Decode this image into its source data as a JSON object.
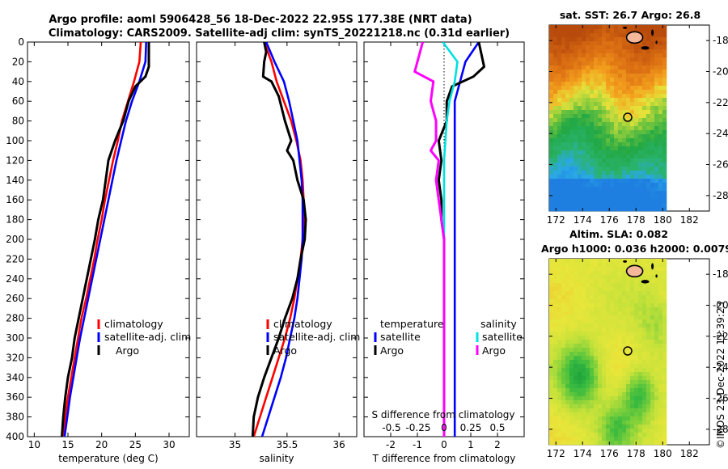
{
  "figure": {
    "title_line1": "Argo profile: aoml 5906428_56 18-Dec-2022 22.95S 177.38E (NRT data)",
    "title_line2": "Climatology: CARS2009. Satellite-adj clim: synTS_20221218.nc (0.31d earlier)",
    "timestamp": "©IMOS 23-Dec-2022 11:39:23"
  },
  "colors": {
    "climatology": "#ff0000",
    "satellite": "#0000ff",
    "argo": "#000000",
    "sat_salinity": "#00e0e0",
    "argo_salinity": "#ff00ff"
  },
  "chart_data": [
    {
      "type": "line",
      "panel": "temperature",
      "xlabel": "temperature (deg C)",
      "ylabel": "",
      "xlim": [
        9,
        33
      ],
      "ylim": [
        0,
        400
      ],
      "y_reversed": true,
      "xticks": [
        10,
        15,
        20,
        25,
        30
      ],
      "yticks": [
        0,
        20,
        40,
        60,
        80,
        100,
        120,
        140,
        160,
        180,
        200,
        220,
        240,
        260,
        280,
        300,
        320,
        340,
        360,
        380,
        400
      ],
      "legend": [
        "climatology",
        "satellite-adj. clim",
        "Argo"
      ],
      "legend_position": "bottom-right",
      "series": [
        {
          "name": "climatology",
          "color": "#ff0000",
          "points": [
            [
              25.8,
              0
            ],
            [
              25.6,
              20
            ],
            [
              24.8,
              40
            ],
            [
              23.9,
              60
            ],
            [
              23.0,
              80
            ],
            [
              22.4,
              100
            ],
            [
              21.7,
              120
            ],
            [
              21.1,
              140
            ],
            [
              20.5,
              160
            ],
            [
              20.0,
              180
            ],
            [
              19.4,
              200
            ],
            [
              18.9,
              220
            ],
            [
              18.3,
              240
            ],
            [
              17.7,
              260
            ],
            [
              17.0,
              280
            ],
            [
              16.5,
              300
            ],
            [
              16.0,
              320
            ],
            [
              15.5,
              340
            ],
            [
              15.0,
              360
            ],
            [
              14.6,
              380
            ],
            [
              14.2,
              400
            ]
          ]
        },
        {
          "name": "satellite-adj. clim",
          "color": "#0000ff",
          "points": [
            [
              26.6,
              0
            ],
            [
              26.5,
              20
            ],
            [
              25.6,
              40
            ],
            [
              24.5,
              60
            ],
            [
              23.6,
              80
            ],
            [
              22.9,
              100
            ],
            [
              22.2,
              120
            ],
            [
              21.6,
              140
            ],
            [
              21.0,
              160
            ],
            [
              20.4,
              180
            ],
            [
              19.8,
              200
            ],
            [
              19.2,
              220
            ],
            [
              18.6,
              240
            ],
            [
              18.0,
              260
            ],
            [
              17.4,
              280
            ],
            [
              16.8,
              300
            ],
            [
              16.3,
              320
            ],
            [
              15.8,
              340
            ],
            [
              15.3,
              360
            ],
            [
              14.9,
              380
            ],
            [
              14.5,
              400
            ]
          ]
        },
        {
          "name": "Argo",
          "color": "#000000",
          "points": [
            [
              27.0,
              0
            ],
            [
              27.0,
              25
            ],
            [
              26.5,
              35
            ],
            [
              25.0,
              45
            ],
            [
              24.0,
              60
            ],
            [
              23.2,
              80
            ],
            [
              22.0,
              100
            ],
            [
              21.0,
              120
            ],
            [
              20.6,
              140
            ],
            [
              20.2,
              160
            ],
            [
              19.5,
              180
            ],
            [
              19.0,
              200
            ],
            [
              18.4,
              220
            ],
            [
              17.8,
              240
            ],
            [
              17.2,
              260
            ],
            [
              16.6,
              280
            ],
            [
              16.0,
              300
            ],
            [
              15.6,
              320
            ],
            [
              15.0,
              340
            ],
            [
              14.6,
              360
            ],
            [
              14.3,
              380
            ],
            [
              14.1,
              400
            ]
          ]
        }
      ]
    },
    {
      "type": "line",
      "panel": "salinity",
      "xlabel": "salinity",
      "ylabel": "",
      "xlim": [
        34.63,
        36.17
      ],
      "ylim": [
        0,
        400
      ],
      "y_reversed": true,
      "xticks": [
        35,
        35.5,
        36
      ],
      "legend": [
        "climatology",
        "satellite-adj. clim",
        "Argo"
      ],
      "legend_position": "bottom-right",
      "series": [
        {
          "name": "climatology",
          "color": "#ff0000",
          "points": [
            [
              35.28,
              0
            ],
            [
              35.35,
              20
            ],
            [
              35.4,
              40
            ],
            [
              35.47,
              60
            ],
            [
              35.54,
              80
            ],
            [
              35.59,
              100
            ],
            [
              35.63,
              120
            ],
            [
              35.65,
              140
            ],
            [
              35.66,
              160
            ],
            [
              35.66,
              180
            ],
            [
              35.65,
              200
            ],
            [
              35.63,
              220
            ],
            [
              35.6,
              240
            ],
            [
              35.57,
              260
            ],
            [
              35.53,
              280
            ],
            [
              35.48,
              300
            ],
            [
              35.42,
              320
            ],
            [
              35.36,
              340
            ],
            [
              35.3,
              360
            ],
            [
              35.24,
              380
            ],
            [
              35.18,
              400
            ]
          ]
        },
        {
          "name": "satellite-adj. clim",
          "color": "#0000ff",
          "points": [
            [
              35.3,
              0
            ],
            [
              35.38,
              20
            ],
            [
              35.47,
              40
            ],
            [
              35.52,
              60
            ],
            [
              35.56,
              80
            ],
            [
              35.6,
              100
            ],
            [
              35.62,
              120
            ],
            [
              35.64,
              140
            ],
            [
              35.65,
              160
            ],
            [
              35.65,
              180
            ],
            [
              35.65,
              200
            ],
            [
              35.64,
              220
            ],
            [
              35.62,
              240
            ],
            [
              35.6,
              260
            ],
            [
              35.57,
              280
            ],
            [
              35.53,
              300
            ],
            [
              35.49,
              320
            ],
            [
              35.44,
              340
            ],
            [
              35.38,
              360
            ],
            [
              35.32,
              380
            ],
            [
              35.26,
              400
            ]
          ]
        },
        {
          "name": "Argo",
          "color": "#000000",
          "points": [
            [
              35.28,
              0
            ],
            [
              35.3,
              10
            ],
            [
              35.28,
              20
            ],
            [
              35.27,
              35
            ],
            [
              35.35,
              40
            ],
            [
              35.42,
              55
            ],
            [
              35.48,
              80
            ],
            [
              35.54,
              100
            ],
            [
              35.5,
              110
            ],
            [
              35.56,
              120
            ],
            [
              35.6,
              140
            ],
            [
              35.66,
              160
            ],
            [
              35.68,
              180
            ],
            [
              35.67,
              200
            ],
            [
              35.63,
              220
            ],
            [
              35.6,
              240
            ],
            [
              35.55,
              260
            ],
            [
              35.48,
              280
            ],
            [
              35.42,
              300
            ],
            [
              35.35,
              320
            ],
            [
              35.28,
              340
            ],
            [
              35.22,
              360
            ],
            [
              35.18,
              380
            ],
            [
              35.17,
              400
            ]
          ]
        }
      ]
    },
    {
      "type": "line",
      "panel": "difference",
      "xlabel": "T difference from climatology",
      "xlabel_top": "S difference from climatology",
      "ylabel": "",
      "xlim": [
        -3,
        3
      ],
      "ylim": [
        0,
        400
      ],
      "y_reversed": true,
      "xticks": [
        -2,
        -1,
        0,
        1,
        2
      ],
      "xticks_salinity_labels": [
        "-0.5",
        "-0.25",
        "0",
        "0.25",
        "0.5"
      ],
      "legend_headers": [
        "temperature",
        "salinity"
      ],
      "legend_temperature": [
        "satellite",
        "Argo"
      ],
      "legend_salinity": [
        "satellite",
        "Argo"
      ],
      "legend_position": "bottom",
      "series": [
        {
          "name": "T satellite",
          "color": "#0000ff",
          "points": [
            [
              1.3,
              0
            ],
            [
              0.8,
              20
            ],
            [
              0.6,
              40
            ],
            [
              0.4,
              60
            ],
            [
              0.4,
              80
            ],
            [
              0.4,
              100
            ],
            [
              0.4,
              120
            ],
            [
              0.4,
              140
            ],
            [
              0.4,
              160
            ],
            [
              0.4,
              180
            ],
            [
              0.4,
              200
            ],
            [
              0.4,
              220
            ],
            [
              0.4,
              240
            ],
            [
              0.4,
              260
            ],
            [
              0.4,
              280
            ],
            [
              0.4,
              300
            ],
            [
              0.4,
              320
            ],
            [
              0.4,
              340
            ],
            [
              0.4,
              360
            ],
            [
              0.4,
              380
            ],
            [
              0.4,
              400
            ]
          ]
        },
        {
          "name": "T Argo",
          "color": "#000000",
          "points": [
            [
              1.3,
              0
            ],
            [
              1.5,
              25
            ],
            [
              1.1,
              35
            ],
            [
              0.3,
              45
            ],
            [
              0.1,
              60
            ],
            [
              0.1,
              80
            ],
            [
              -0.2,
              100
            ],
            [
              -0.1,
              120
            ],
            [
              -0.2,
              140
            ],
            [
              -0.1,
              160
            ],
            [
              -0.1,
              180
            ],
            [
              0.0,
              200
            ],
            [
              0.0,
              220
            ],
            [
              0.0,
              240
            ],
            [
              0.0,
              260
            ],
            [
              0.0,
              280
            ],
            [
              0.0,
              300
            ],
            [
              0.0,
              320
            ],
            [
              0.0,
              340
            ],
            [
              0.0,
              360
            ],
            [
              0.0,
              380
            ],
            [
              0.0,
              400
            ]
          ]
        },
        {
          "name": "S satellite",
          "color": "#00e0e0",
          "points": [
            [
              -0.05,
              0
            ],
            [
              0.5,
              20
            ],
            [
              0.4,
              40
            ],
            [
              0.2,
              60
            ],
            [
              0.1,
              80
            ],
            [
              0.0,
              120
            ],
            [
              0.0,
              160
            ],
            [
              0.0,
              200
            ],
            [
              0.0,
              240
            ],
            [
              0.0,
              280
            ],
            [
              0.0,
              320
            ],
            [
              0.0,
              360
            ],
            [
              0.0,
              400
            ]
          ]
        },
        {
          "name": "S Argo",
          "color": "#ff00ff",
          "points": [
            [
              -0.8,
              0
            ],
            [
              -1.1,
              30
            ],
            [
              -0.4,
              40
            ],
            [
              -0.5,
              60
            ],
            [
              -0.3,
              80
            ],
            [
              -0.3,
              100
            ],
            [
              -0.5,
              110
            ],
            [
              -0.2,
              120
            ],
            [
              -0.3,
              140
            ],
            [
              -0.2,
              160
            ],
            [
              -0.1,
              180
            ],
            [
              0.0,
              200
            ],
            [
              0.0,
              240
            ],
            [
              0.0,
              280
            ],
            [
              0.0,
              320
            ],
            [
              0.0,
              360
            ],
            [
              0.0,
              400
            ]
          ]
        }
      ]
    },
    {
      "type": "heatmap",
      "panel": "sst_map",
      "title": "sat. SST: 26.7 Argo: 26.8",
      "xticks": [
        172,
        174,
        176,
        178,
        180,
        182
      ],
      "yticks": [
        -18,
        -20,
        -22,
        -24,
        -26,
        -28
      ],
      "xlim": [
        171.5,
        183.5
      ],
      "ylim": [
        -29,
        -17
      ],
      "data_extent_lon": [
        171.5,
        180
      ],
      "argo_position": {
        "lon": 177.38,
        "lat": -22.95
      }
    },
    {
      "type": "heatmap",
      "panel": "sla_map",
      "title_line1": "Altim. SLA: 0.082",
      "title_line2": "Argo h1000: 0.036 h2000: 0.0079",
      "xticks": [
        172,
        174,
        176,
        178,
        180,
        182
      ],
      "yticks": [
        -18,
        -20,
        -22,
        -24,
        -26,
        -28
      ],
      "xlim": [
        171.5,
        183.5
      ],
      "ylim": [
        -29,
        -17
      ],
      "data_extent_lon": [
        171.5,
        180
      ],
      "argo_position": {
        "lon": 177.38,
        "lat": -22.95
      }
    }
  ]
}
